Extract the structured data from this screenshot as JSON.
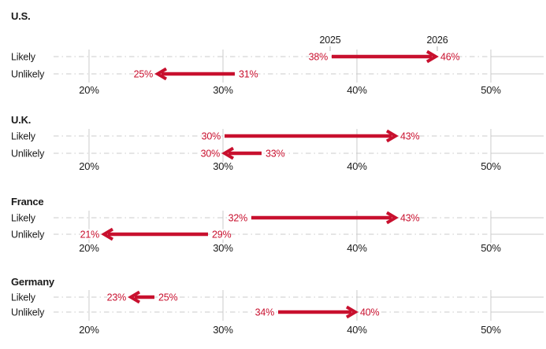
{
  "chart_data": {
    "type": "dumbbell-arrow",
    "description": "Small-multiple arrow chart: change from 2025 to 2026 in share saying Likely/Unlikely, by country",
    "rows": [
      "Likely",
      "Unlikely"
    ],
    "x_axis": {
      "ticks": [
        20,
        30,
        40,
        50
      ],
      "tick_labels": [
        "20%",
        "30%",
        "40%",
        "50%"
      ],
      "xlim": [
        17.4,
        54.0
      ],
      "unit": "%",
      "grid": true
    },
    "arrow_year_start": "2025",
    "arrow_year_end": "2026",
    "colors": {
      "arrow": "#c8102e",
      "grid": "#cbcbcb",
      "text": "#1a1a1a",
      "year_tick": "#b5b5b5",
      "background": "#ffffff"
    },
    "panels": [
      {
        "country": "U.S.",
        "show_year_labels": true,
        "series": [
          {
            "row": "Likely",
            "from_2025": 38,
            "to_2026": 46,
            "from_label": "38%",
            "to_label": "46%"
          },
          {
            "row": "Unlikely",
            "from_2025": 31,
            "to_2026": 25,
            "from_label": "31%",
            "to_label": "25%"
          }
        ]
      },
      {
        "country": "U.K.",
        "show_year_labels": false,
        "series": [
          {
            "row": "Likely",
            "from_2025": 30,
            "to_2026": 43,
            "from_label": "30%",
            "to_label": "43%"
          },
          {
            "row": "Unlikely",
            "from_2025": 33,
            "to_2026": 30,
            "from_label": "33%",
            "to_label": "30%"
          }
        ]
      },
      {
        "country": "France",
        "show_year_labels": false,
        "series": [
          {
            "row": "Likely",
            "from_2025": 32,
            "to_2026": 43,
            "from_label": "32%",
            "to_label": "43%"
          },
          {
            "row": "Unlikely",
            "from_2025": 29,
            "to_2026": 21,
            "from_label": "29%",
            "to_label": "21%"
          }
        ]
      },
      {
        "country": "Germany",
        "show_year_labels": false,
        "series": [
          {
            "row": "Likely",
            "from_2025": 25,
            "to_2026": 23,
            "from_label": "25%",
            "to_label": "23%"
          },
          {
            "row": "Unlikely",
            "from_2025": 34,
            "to_2026": 40,
            "from_label": "34%",
            "to_label": "40%"
          }
        ]
      }
    ]
  }
}
